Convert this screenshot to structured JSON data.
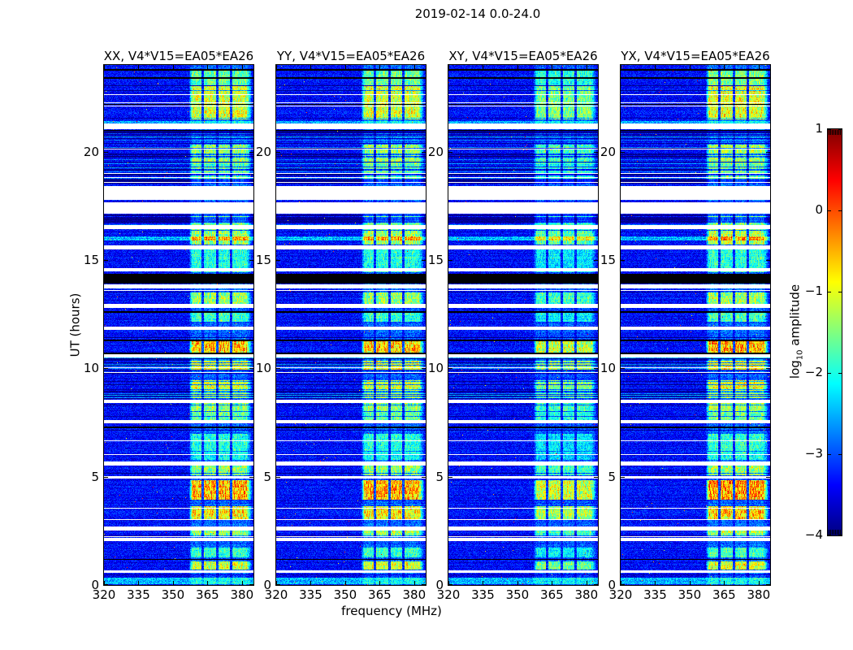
{
  "chart_data": {
    "type": "heatmap",
    "subtype": "dynamic-spectrum-waterfall",
    "title": "2019-02-14 0.0-24.0",
    "panels": [
      {
        "corr": "XX",
        "title": "XX, V4*V15=EA05*EA26",
        "seed": 11,
        "band_gain": 1.0
      },
      {
        "corr": "YY",
        "title": "YY, V4*V15=EA05*EA26",
        "seed": 37,
        "band_gain": 1.0
      },
      {
        "corr": "XY",
        "title": "XY, V4*V15=EA05*EA26",
        "seed": 71,
        "band_gain": 0.8
      },
      {
        "corr": "YX",
        "title": "YX, V4*V15=EA05*EA26",
        "seed": 93,
        "band_gain": 1.05
      }
    ],
    "axes": {
      "x_label": "frequency (MHz)",
      "y_label": "UT (hours)",
      "x_tick_labels": [
        "320",
        "335",
        "350",
        "365",
        "380"
      ],
      "x_tick_values": [
        320,
        335,
        350,
        365,
        380
      ],
      "y_tick_labels": [
        "0",
        "5",
        "10",
        "15",
        "20"
      ],
      "y_tick_values": [
        0,
        5,
        10,
        15,
        20
      ],
      "x_range": [
        320,
        385
      ],
      "y_range": [
        0,
        24
      ],
      "grid": false
    },
    "colorbar": {
      "label_prefix": "log",
      "label_sub": "10",
      "label_suffix": " amplitude",
      "tick_labels": [
        "1",
        "0",
        "−1",
        "−2",
        "−3",
        "−4"
      ],
      "tick_values": [
        1,
        0,
        -1,
        -2,
        -3,
        -4
      ],
      "range": [
        -4,
        1
      ],
      "colormap": "jet"
    },
    "features": {
      "rfi_band": {
        "f_start": 357.0,
        "f_end": 384.5,
        "gap_freqs": [
          362.8,
          369.2,
          375.4
        ],
        "gap_halfwidth": 0.55
      },
      "white_gaps_hours": [
        [
          17.15,
          18.45
        ],
        [
          21.05,
          21.3
        ],
        [
          16.45,
          16.62
        ],
        [
          15.52,
          15.68
        ],
        [
          14.5,
          14.66
        ],
        [
          13.72,
          13.9
        ],
        [
          12.82,
          12.98
        ],
        [
          11.78,
          11.94
        ],
        [
          10.52,
          10.68
        ],
        [
          8.42,
          8.58
        ],
        [
          7.48,
          7.64
        ],
        [
          5.52,
          5.72
        ],
        [
          4.92,
          5.06
        ],
        [
          2.52,
          2.72
        ],
        [
          2.05,
          2.2
        ],
        [
          0.58,
          0.7
        ]
      ],
      "gap_inner_line_hour": 17.75,
      "black_bands_hours": [
        [
          13.92,
          14.38
        ]
      ],
      "black_lines_hours": [
        23.78,
        23.42,
        22.2,
        21.0,
        12.62,
        11.32,
        10.72,
        7.3,
        1.2
      ],
      "stripe_zones_hours": [
        [
          18.5,
          21.0
        ],
        [
          8.6,
          10.5
        ],
        [
          16.62,
          17.12
        ]
      ],
      "bright_band_events": [
        [
          23.1,
          23.78,
          0.5
        ],
        [
          21.5,
          23.05,
          0.75
        ],
        [
          19.55,
          20.35,
          0.6
        ],
        [
          18.55,
          19.5,
          0.45
        ],
        [
          16.4,
          17.1,
          0.5
        ],
        [
          15.75,
          16.35,
          0.65
        ],
        [
          14.45,
          15.5,
          0.35
        ],
        [
          13.0,
          13.55,
          0.6
        ],
        [
          12.15,
          12.6,
          0.4
        ],
        [
          10.75,
          11.28,
          0.95
        ],
        [
          9.95,
          10.45,
          0.75
        ],
        [
          8.95,
          9.45,
          0.75
        ],
        [
          8.6,
          8.95,
          0.5
        ],
        [
          8.05,
          8.45,
          0.6
        ],
        [
          7.62,
          8.0,
          0.5
        ],
        [
          6.2,
          7.0,
          0.35
        ],
        [
          5.8,
          6.15,
          0.3
        ],
        [
          5.1,
          5.55,
          0.6
        ],
        [
          3.95,
          4.85,
          1.0
        ],
        [
          3.05,
          3.65,
          0.85
        ],
        [
          2.25,
          2.52,
          0.6
        ],
        [
          1.3,
          1.75,
          0.4
        ],
        [
          0.72,
          1.1,
          0.75
        ]
      ],
      "bright_full_rows_hours": [
        [
          0.05,
          0.35
        ],
        [
          15.9,
          16.1
        ],
        [
          21.32,
          21.45
        ]
      ],
      "value_floor": -4,
      "value_ceiling": 1,
      "background_value": -3.35
    }
  }
}
